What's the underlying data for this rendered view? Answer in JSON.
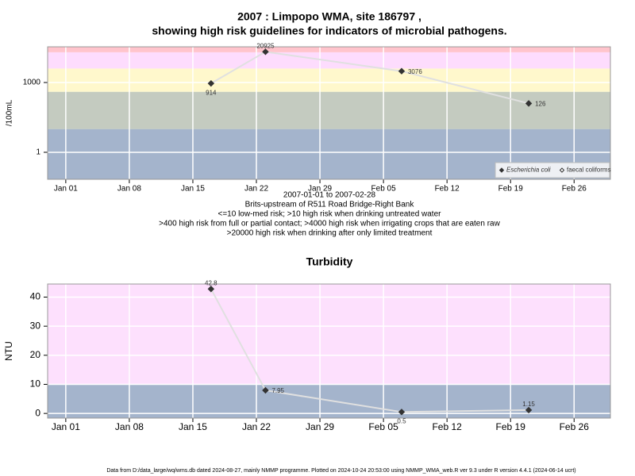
{
  "footer": "Data from D:/data_large/wq/wms.db dated 2024-08-27, mainly NMMP programme. Plotted on 2024-10-24 20:53:00 using NMMP_WMA_web.R ver 9.3 under R version 4.4.1 (2024-06-14 ucrt)",
  "chart_data": [
    {
      "type": "line",
      "title": [
        "2007 : Limpopo WMA, site 186797 ,",
        "showing high risk guidelines for indicators of microbial pathogens."
      ],
      "subtitle": [
        "2007-01-01 to 2007-02-28",
        "Brits-upstream of R511 Road Bridge-Right Bank",
        "<=10 low-med risk; >10 high risk when drinking untreated water",
        ">400 high risk from full or partial contact; >4000 high risk when irrigating crops that are eaten raw",
        ">20000 high risk when drinking after only limited treatment"
      ],
      "ylabel": "/100mL",
      "log": true,
      "grid": true,
      "legend": "bottom-right",
      "xlim": [
        "2006-12-30",
        "2007-03-02"
      ],
      "xticks": [
        {
          "value": "2007-01-01",
          "label": "Jan 01"
        },
        {
          "value": "2007-01-08",
          "label": "Jan 08"
        },
        {
          "value": "2007-01-15",
          "label": "Jan 15"
        },
        {
          "value": "2007-01-22",
          "label": "Jan 22"
        },
        {
          "value": "2007-01-29",
          "label": "Jan 29"
        },
        {
          "value": "2007-02-05",
          "label": "Feb 05"
        },
        {
          "value": "2007-02-12",
          "label": "Feb 12"
        },
        {
          "value": "2007-02-19",
          "label": "Feb 19"
        },
        {
          "value": "2007-02-26",
          "label": "Feb 26"
        }
      ],
      "ylim": [
        0.069,
        34300
      ],
      "yticks": [
        1,
        1000
      ],
      "thresholds": [
        10,
        400,
        4000,
        20000
      ],
      "band_colors": [
        "#a4b4cc",
        "#c4cbc0",
        "#fff8cc",
        "#fddcfd",
        "#ffc4cc"
      ],
      "series": [
        {
          "name": "Escherichia coli",
          "color": "#333333",
          "marker": "filled",
          "x": [
            "2007-01-17",
            "2007-01-23",
            "2007-02-07",
            "2007-02-21"
          ],
          "values": [
            914,
            20925,
            3076,
            126
          ]
        },
        {
          "name": "faecal coliforms",
          "color": "#333333",
          "marker": "open",
          "x": [],
          "values": []
        }
      ]
    },
    {
      "type": "line",
      "title": "Turbidity",
      "ylabel": "NTU",
      "log": false,
      "grid": true,
      "xlim": [
        "2006-12-30",
        "2007-03-02"
      ],
      "xticks": [
        {
          "value": "2007-01-01",
          "label": "Jan 01"
        },
        {
          "value": "2007-01-08",
          "label": "Jan 08"
        },
        {
          "value": "2007-01-15",
          "label": "Jan 15"
        },
        {
          "value": "2007-01-22",
          "label": "Jan 22"
        },
        {
          "value": "2007-01-29",
          "label": "Jan 29"
        },
        {
          "value": "2007-02-05",
          "label": "Feb 05"
        },
        {
          "value": "2007-02-12",
          "label": "Feb 12"
        },
        {
          "value": "2007-02-19",
          "label": "Feb 19"
        },
        {
          "value": "2007-02-26",
          "label": "Feb 26"
        }
      ],
      "ylim": [
        -1.6,
        44.5
      ],
      "yticks": [
        0,
        10,
        20,
        30,
        40
      ],
      "thresholds": [
        10
      ],
      "band_colors": [
        "#a4b4cc",
        "#fde0fd"
      ],
      "series": [
        {
          "color": "#333333",
          "marker": "filled",
          "x": [
            "2007-01-17",
            "2007-01-23",
            "2007-02-07",
            "2007-02-21"
          ],
          "values": [
            42.8,
            7.95,
            0.5,
            1.15
          ]
        }
      ]
    }
  ]
}
